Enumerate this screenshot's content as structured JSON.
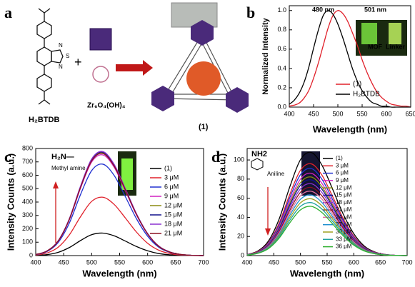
{
  "panel_labels": [
    "a",
    "b",
    "c",
    "d"
  ],
  "scheme": {
    "linker": "H₂BTDB",
    "cluster": "Zr₆O₄(OH)₄",
    "plus": "+",
    "product": "(1)",
    "atoms": [
      "S",
      "N",
      "N"
    ]
  },
  "chart_data": [
    {
      "type": "line",
      "xlabel": "Wavelength (nm)",
      "ylabel": "Normalized Intensity",
      "x": [
        400,
        410,
        420,
        430,
        440,
        450,
        460,
        470,
        480,
        490,
        500,
        510,
        520,
        530,
        540,
        550,
        560,
        570,
        580,
        590,
        600,
        610,
        620,
        630,
        640,
        650
      ],
      "xlim": [
        400,
        650
      ],
      "xticks": [
        400,
        450,
        500,
        550,
        600,
        650
      ],
      "ylim": [
        0,
        1.05
      ],
      "yticks": [
        {
          "value": 0,
          "label": "0.0"
        },
        0.2,
        0.4,
        0.6,
        0.8,
        {
          "value": 1,
          "label": "1.0"
        }
      ],
      "series": [
        {
          "name": "(1)",
          "color": "#e0202a",
          "values": [
            0.01,
            0.02,
            0.04,
            0.09,
            0.17,
            0.3,
            0.46,
            0.64,
            0.82,
            0.95,
            1.0,
            0.97,
            0.89,
            0.77,
            0.64,
            0.49,
            0.36,
            0.25,
            0.16,
            0.1,
            0.06,
            0.03,
            0.02,
            0.01,
            0.01,
            0
          ]
        },
        {
          "name": "H₂BTDB",
          "color": "#000000",
          "values": [
            0.03,
            0.07,
            0.14,
            0.25,
            0.41,
            0.61,
            0.8,
            0.95,
            1.0,
            0.96,
            0.86,
            0.72,
            0.56,
            0.4,
            0.27,
            0.17,
            0.1,
            0.05,
            0.03,
            0.01,
            0.01,
            0,
            0,
            0,
            0,
            0
          ]
        }
      ],
      "annotations": [
        {
          "text": "480 nm",
          "color": "#000000"
        },
        {
          "text": "501 nm",
          "color": "#e0202a"
        },
        {
          "text": "MOF",
          "color": "#e0202a"
        },
        {
          "text": "Linker",
          "color": "#e0202a"
        }
      ]
    },
    {
      "type": "line",
      "xlabel": "Wavelength (nm)",
      "ylabel": "Intensity Counts (a.u.)",
      "x": [
        400,
        420,
        440,
        460,
        480,
        500,
        520,
        540,
        560,
        580,
        600,
        620,
        640,
        660,
        680,
        700
      ],
      "xlim": [
        400,
        700
      ],
      "xticks": [
        400,
        450,
        500,
        550,
        600,
        650,
        700
      ],
      "ylim": [
        0,
        800
      ],
      "yticks": [
        0,
        100,
        200,
        300,
        400,
        500,
        600,
        700,
        800
      ],
      "series": [
        {
          "name": "(1)",
          "color": "#000000",
          "values": [
            2,
            7,
            24,
            60,
            112,
            156,
            168,
            148,
            109,
            68,
            36,
            15,
            6,
            2,
            1,
            0
          ]
        },
        {
          "name": "3 μM",
          "color": "#e0202a",
          "values": [
            4,
            19,
            62,
            154,
            290,
            405,
            436,
            383,
            282,
            176,
            92,
            40,
            15,
            4,
            1,
            0
          ]
        },
        {
          "name": "6 μM",
          "color": "#2030d0",
          "values": [
            7,
            30,
            97,
            242,
            455,
            635,
            683,
            600,
            442,
            276,
            145,
            62,
            23,
            7,
            2,
            0
          ]
        },
        {
          "name": "9 μM",
          "color": "#d020c0",
          "values": [
            8,
            33,
            106,
            266,
            502,
            699,
            752,
            661,
            486,
            304,
            160,
            68,
            26,
            8,
            2,
            0
          ]
        },
        {
          "name": "12 μM",
          "color": "#8a8a10",
          "values": [
            8,
            34,
            109,
            271,
            512,
            713,
            767,
            674,
            496,
            310,
            163,
            70,
            26,
            8,
            2,
            0
          ]
        },
        {
          "name": "15 μM",
          "color": "#10108a",
          "values": [
            8,
            34,
            109,
            273,
            515,
            718,
            772,
            679,
            499,
            312,
            164,
            70,
            27,
            8,
            2,
            0
          ]
        },
        {
          "name": "18 μM",
          "color": "#8a30d0",
          "values": [
            8,
            35,
            110,
            275,
            518,
            722,
            777,
            683,
            502,
            314,
            165,
            71,
            27,
            8,
            2,
            0
          ]
        },
        {
          "name": "21 μM",
          "color": "#8a1020",
          "values": [
            8,
            34,
            108,
            270,
            508,
            708,
            762,
            670,
            493,
            308,
            162,
            69,
            26,
            8,
            2,
            0
          ]
        }
      ],
      "annotations": [
        {
          "text": "H₂N—",
          "color": "#000000"
        },
        {
          "text": "Methyl amine",
          "color": "#000000"
        }
      ]
    },
    {
      "type": "line",
      "xlabel": "Wavelength (nm)",
      "ylabel": "Intensity Counts (a.u.)",
      "x": [
        400,
        420,
        440,
        460,
        480,
        500,
        520,
        540,
        560,
        580,
        600,
        620,
        640,
        660,
        680,
        700
      ],
      "xlim": [
        400,
        700
      ],
      "xticks": [
        400,
        450,
        500,
        550,
        600,
        650,
        700
      ],
      "ylim": [
        0,
        112
      ],
      "yticks": [
        0,
        20,
        40,
        60,
        80,
        100
      ],
      "series": [
        {
          "name": "(1)",
          "color": "#000000",
          "values": [
            1.1,
            4.8,
            15.3,
            38.2,
            71.9,
            100.3,
            107.9,
            94.8,
            69.8,
            43.6,
            22.9,
            9.8,
            3.7,
            1.1,
            0.3,
            0
          ]
        },
        {
          "name": "3 μM",
          "color": "#e0202a",
          "values": [
            1.0,
            4.3,
            13.6,
            34.0,
            64.0,
            89.2,
            96.0,
            84.4,
            62.1,
            38.8,
            20.4,
            8.7,
            3.3,
            1.0,
            0.3,
            0
          ]
        },
        {
          "name": "6 μM",
          "color": "#2030d0",
          "values": [
            0.9,
            4.0,
            12.9,
            32.2,
            60.7,
            84.6,
            91.1,
            80.0,
            58.9,
            36.8,
            19.3,
            8.3,
            3.1,
            0.9,
            0.3,
            0
          ]
        },
        {
          "name": "9 μM",
          "color": "#d020c0",
          "values": [
            0.9,
            3.8,
            12.2,
            30.5,
            57.4,
            80.0,
            86.1,
            75.7,
            55.7,
            34.8,
            18.3,
            7.8,
            3.0,
            0.9,
            0.3,
            0
          ]
        },
        {
          "name": "12 μM",
          "color": "#8a8a10",
          "values": [
            0.8,
            3.7,
            11.6,
            29.1,
            54.8,
            76.4,
            82.2,
            72.2,
            53.1,
            33.2,
            17.4,
            7.5,
            2.8,
            0.8,
            0.2,
            0
          ]
        },
        {
          "name": "15 μM",
          "color": "#10108a",
          "values": [
            0.8,
            3.5,
            11.2,
            28.0,
            52.8,
            73.6,
            79.2,
            69.6,
            51.2,
            32.0,
            16.8,
            7.2,
            2.7,
            0.8,
            0.2,
            0
          ]
        },
        {
          "name": "18 μM",
          "color": "#8a30d0",
          "values": [
            0.8,
            3.3,
            10.6,
            26.6,
            50.2,
            69.9,
            75.2,
            66.1,
            48.6,
            30.4,
            16.0,
            6.8,
            2.6,
            0.8,
            0.2,
            0
          ]
        },
        {
          "name": "21 μM",
          "color": "#8a1020",
          "values": [
            0.7,
            3.2,
            10.1,
            25.2,
            47.5,
            66.2,
            71.3,
            62.6,
            46.1,
            28.8,
            15.1,
            6.5,
            2.4,
            0.7,
            0.2,
            0
          ]
        },
        {
          "name": "24 μM",
          "color": "#e070a0",
          "values": [
            0.7,
            3.0,
            9.5,
            23.8,
            44.9,
            62.6,
            67.3,
            59.2,
            43.5,
            27.2,
            14.3,
            6.1,
            2.3,
            0.7,
            0.2,
            0
          ]
        },
        {
          "name": "27 μM",
          "color": "#2090d0",
          "values": [
            0.6,
            2.8,
            9.0,
            22.4,
            42.2,
            58.9,
            63.4,
            55.7,
            41.0,
            25.6,
            13.4,
            5.8,
            2.2,
            0.6,
            0.2,
            0
          ]
        },
        {
          "name": "30 μM",
          "color": "#a0a020",
          "values": [
            0.6,
            2.6,
            8.4,
            21.0,
            39.6,
            55.2,
            59.4,
            52.2,
            38.4,
            24.0,
            12.6,
            5.4,
            2.0,
            0.6,
            0.2,
            0
          ]
        },
        {
          "name": "33 μM",
          "color": "#20a0a0",
          "values": [
            0.6,
            2.5,
            7.8,
            19.6,
            37.0,
            51.5,
            55.4,
            48.7,
            35.8,
            22.4,
            11.8,
            5.0,
            1.9,
            0.6,
            0.2,
            0
          ]
        },
        {
          "name": "36 μM",
          "color": "#30b030",
          "values": [
            0.5,
            2.3,
            7.3,
            18.2,
            34.3,
            47.8,
            51.5,
            45.2,
            33.3,
            20.8,
            10.9,
            4.7,
            1.8,
            0.5,
            0.2,
            0
          ]
        }
      ],
      "annotations": [
        {
          "text": "NH2",
          "color": "#000000"
        },
        {
          "text": "Aniline",
          "color": "#000000"
        }
      ]
    }
  ]
}
